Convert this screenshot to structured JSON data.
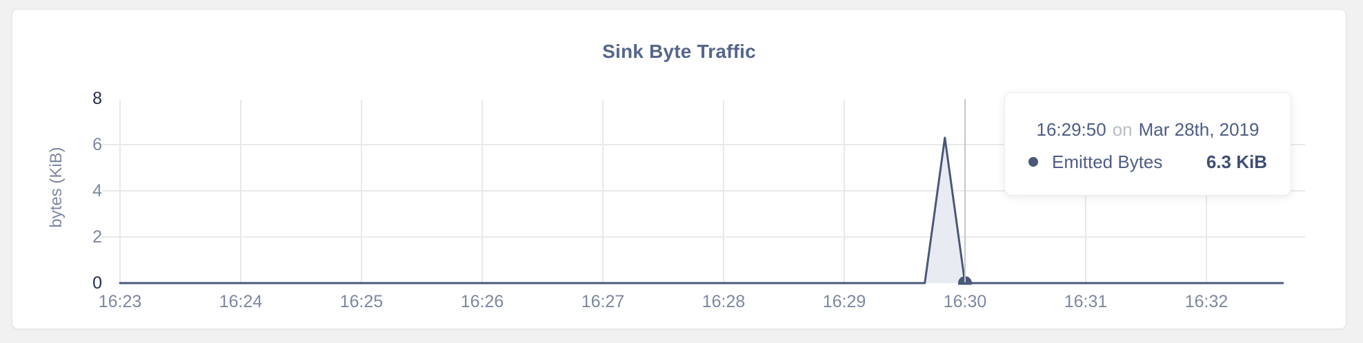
{
  "chart_data": {
    "type": "area",
    "title": "Sink Byte Traffic",
    "ylabel": "bytes (KiB)",
    "xlabel": "",
    "x_ticks": [
      "16:23",
      "16:24",
      "16:25",
      "16:26",
      "16:27",
      "16:28",
      "16:29",
      "16:30",
      "16:31",
      "16:32"
    ],
    "y_ticks": [
      0,
      2,
      4,
      6,
      8
    ],
    "ylim": [
      0,
      8
    ],
    "grid": true,
    "legend_position": "none",
    "series": [
      {
        "name": "Emitted Bytes",
        "color": "#4a5878",
        "fill_color": "#e9ebf3",
        "points": [
          {
            "time": "16:23:00",
            "value": 0
          },
          {
            "time": "16:29:40",
            "value": 0
          },
          {
            "time": "16:29:50",
            "value": 6.3
          },
          {
            "time": "16:30:00",
            "value": 0
          },
          {
            "time": "16:32:38",
            "value": 0
          }
        ]
      }
    ],
    "tooltip": {
      "time": "16:29:50",
      "on_label": "on",
      "date": "Mar 28th, 2019",
      "series": "Emitted Bytes",
      "value": "6.3 KiB",
      "crosshair_time": "16:30:00"
    },
    "colors": {
      "line": "#4a5878",
      "area_fill": "#e9ebf3",
      "gridline": "#e9e9ec",
      "crosshair": "#c3c6cc",
      "tick_label": "#7d87a1",
      "tick_label_dark": "#232c49",
      "title": "#55668a",
      "card_background": "#ffffff",
      "page_background": "#f1f1f2"
    }
  }
}
